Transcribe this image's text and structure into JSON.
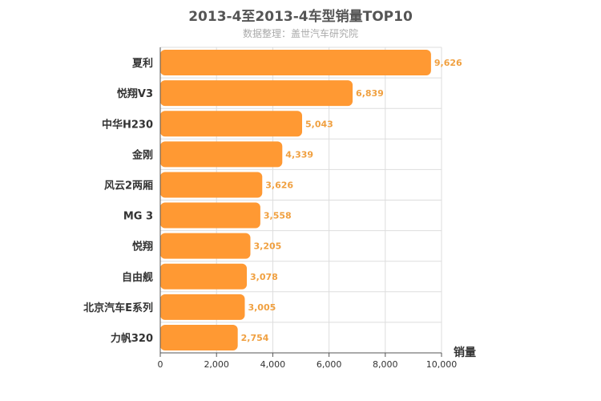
{
  "chart_data": {
    "type": "bar",
    "orientation": "horizontal",
    "title": "2013-4至2013-4车型销量TOP10",
    "subtitle": "数据整理：盖世汽车研究院",
    "categories": [
      "夏利",
      "悦翔V3",
      "中华H230",
      "金刚",
      "风云2两厢",
      "MG 3",
      "悦翔",
      "自由舰",
      "北京汽车E系列",
      "力帆320"
    ],
    "values": [
      9626,
      6839,
      5043,
      4339,
      3626,
      3558,
      3205,
      3078,
      3005,
      2754
    ],
    "value_labels": [
      "9,626",
      "6,839",
      "5,043",
      "4,339",
      "3,626",
      "3,558",
      "3,205",
      "3,078",
      "3,005",
      "2,754"
    ],
    "xlabel": "销量",
    "ylabel": "",
    "xlim": [
      0,
      10000
    ],
    "ticks": [
      0,
      2000,
      4000,
      6000,
      8000,
      10000
    ],
    "tick_labels": [
      "0",
      "2,000",
      "4,000",
      "6,000",
      "8,000",
      "10,000"
    ],
    "grid": true,
    "colors": {
      "bar": "#ff9933",
      "value_label": "#f0a040",
      "grid": "#dddddd"
    }
  }
}
